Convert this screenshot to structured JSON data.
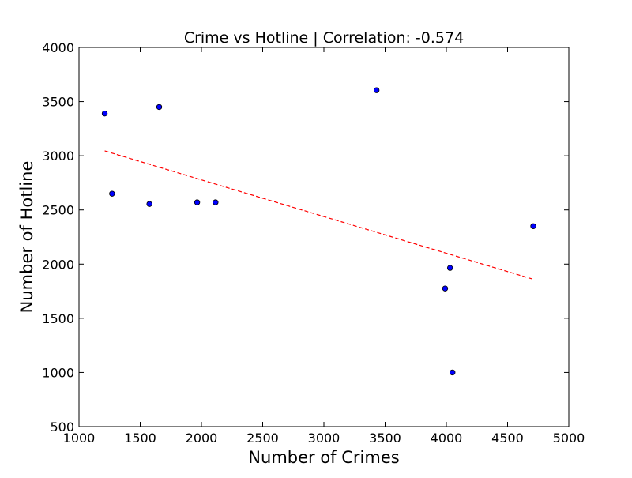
{
  "chart_data": {
    "type": "scatter",
    "title": "Crime vs Hotline | Correlation: -0.574",
    "xlabel": "Number of Crimes",
    "ylabel": "Number of Hotline",
    "xlim": [
      1000,
      5000
    ],
    "ylim": [
      500,
      4000
    ],
    "xticks": [
      "1000",
      "1500",
      "2000",
      "2500",
      "3000",
      "3500",
      "4000",
      "4500",
      "5000"
    ],
    "yticks": [
      "500",
      "1000",
      "1500",
      "2000",
      "2500",
      "3000",
      "3500",
      "4000"
    ],
    "grid": false,
    "legend": "none",
    "point_color": "#0000ff",
    "trend_color": "#ff0000",
    "points": [
      {
        "x": 1210,
        "y": 3390
      },
      {
        "x": 1270,
        "y": 2650
      },
      {
        "x": 1575,
        "y": 2555
      },
      {
        "x": 1655,
        "y": 3450
      },
      {
        "x": 1965,
        "y": 2570
      },
      {
        "x": 2115,
        "y": 2570
      },
      {
        "x": 3430,
        "y": 3605
      },
      {
        "x": 3990,
        "y": 1775
      },
      {
        "x": 4030,
        "y": 1965
      },
      {
        "x": 4050,
        "y": 1000
      },
      {
        "x": 4710,
        "y": 2350
      }
    ],
    "trendline": {
      "x": [
        1210,
        4710
      ],
      "y": [
        3045,
        1860
      ]
    }
  }
}
